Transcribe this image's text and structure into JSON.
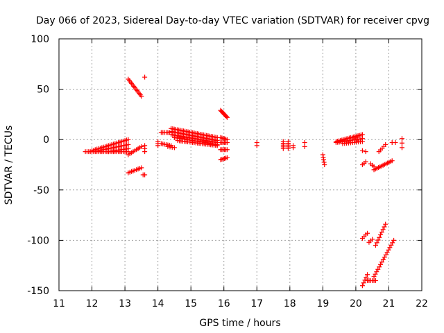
{
  "chart_data": {
    "type": "scatter",
    "title": "Day 066 of 2023, Sidereal Day-to-day VTEC variation (SDTVAR) for receiver cpvg",
    "xlabel": "GPS time / hours",
    "ylabel": "SDTVAR / TECUs",
    "xlim": [
      11,
      22
    ],
    "ylim": [
      -150,
      100
    ],
    "xticks": [
      11,
      12,
      13,
      14,
      15,
      16,
      17,
      18,
      19,
      20,
      21,
      22
    ],
    "yticks": [
      -150,
      -100,
      -50,
      0,
      50,
      100
    ],
    "grid": true,
    "marker": "+",
    "color": "#ff0000",
    "segments": [
      {
        "x0": 11.8,
        "y0": -12,
        "x1": 13.1,
        "y1": -12,
        "n": 27
      },
      {
        "x0": 12.0,
        "y0": -11,
        "x1": 13.1,
        "y1": 0,
        "n": 23
      },
      {
        "x0": 12.2,
        "y0": -11,
        "x1": 13.1,
        "y1": -5,
        "n": 19
      },
      {
        "x0": 12.5,
        "y0": -12,
        "x1": 13.1,
        "y1": -9,
        "n": 13
      },
      {
        "x0": 13.1,
        "y0": 60,
        "x1": 13.5,
        "y1": 43,
        "n": 13
      },
      {
        "x0": 13.6,
        "y0": 62,
        "x1": 13.6,
        "y1": 62,
        "n": 1
      },
      {
        "x0": 13.1,
        "y0": -15,
        "x1": 13.5,
        "y1": -7,
        "n": 9
      },
      {
        "x0": 13.1,
        "y0": -33,
        "x1": 13.5,
        "y1": -28,
        "n": 9
      },
      {
        "x0": 13.6,
        "y0": -6,
        "x1": 13.6,
        "y1": -12,
        "n": 3
      },
      {
        "x0": 13.55,
        "y0": -35,
        "x1": 13.6,
        "y1": -35,
        "n": 2
      },
      {
        "x0": 14.0,
        "y0": -2,
        "x1": 14.0,
        "y1": -6,
        "n": 3
      },
      {
        "x0": 14.1,
        "y0": 7,
        "x1": 14.4,
        "y1": 7,
        "n": 7
      },
      {
        "x0": 14.1,
        "y0": -4,
        "x1": 14.4,
        "y1": -6,
        "n": 7
      },
      {
        "x0": 14.3,
        "y0": -7,
        "x1": 14.5,
        "y1": -8,
        "n": 4
      },
      {
        "x0": 14.4,
        "y0": 11,
        "x1": 15.8,
        "y1": 2,
        "n": 31
      },
      {
        "x0": 14.4,
        "y0": 8,
        "x1": 15.8,
        "y1": -1,
        "n": 31
      },
      {
        "x0": 14.4,
        "y0": 5,
        "x1": 15.8,
        "y1": -3,
        "n": 31
      },
      {
        "x0": 14.5,
        "y0": 2,
        "x1": 15.8,
        "y1": -5,
        "n": 27
      },
      {
        "x0": 14.6,
        "y0": -1,
        "x1": 15.8,
        "y1": -6,
        "n": 25
      },
      {
        "x0": 15.9,
        "y0": 29,
        "x1": 16.1,
        "y1": 22,
        "n": 9
      },
      {
        "x0": 15.9,
        "y0": 2,
        "x1": 16.1,
        "y1": 0,
        "n": 6
      },
      {
        "x0": 15.9,
        "y0": -3,
        "x1": 16.1,
        "y1": -3,
        "n": 6
      },
      {
        "x0": 15.9,
        "y0": -10,
        "x1": 16.1,
        "y1": -10,
        "n": 6
      },
      {
        "x0": 15.9,
        "y0": -20,
        "x1": 16.1,
        "y1": -18,
        "n": 6
      },
      {
        "x0": 17.0,
        "y0": -3,
        "x1": 17.0,
        "y1": -6,
        "n": 2
      },
      {
        "x0": 17.8,
        "y0": -2,
        "x1": 17.8,
        "y1": -9,
        "n": 5
      },
      {
        "x0": 17.95,
        "y0": -2,
        "x1": 17.95,
        "y1": -9,
        "n": 5
      },
      {
        "x0": 18.1,
        "y0": -6,
        "x1": 18.1,
        "y1": -8,
        "n": 2
      },
      {
        "x0": 18.45,
        "y0": -3,
        "x1": 18.45,
        "y1": -7,
        "n": 2
      },
      {
        "x0": 19.0,
        "y0": -15,
        "x1": 19.05,
        "y1": -25,
        "n": 5
      },
      {
        "x0": 19.4,
        "y0": -2,
        "x1": 20.2,
        "y1": 5,
        "n": 19
      },
      {
        "x0": 19.4,
        "y0": -3,
        "x1": 20.2,
        "y1": 1,
        "n": 17
      },
      {
        "x0": 19.6,
        "y0": -4,
        "x1": 20.2,
        "y1": -2,
        "n": 11
      },
      {
        "x0": 20.2,
        "y0": -11,
        "x1": 20.3,
        "y1": -12,
        "n": 2
      },
      {
        "x0": 20.2,
        "y0": -25,
        "x1": 20.3,
        "y1": -22,
        "n": 3
      },
      {
        "x0": 20.45,
        "y0": -24,
        "x1": 20.55,
        "y1": -27,
        "n": 3
      },
      {
        "x0": 20.55,
        "y0": -30,
        "x1": 21.1,
        "y1": -21,
        "n": 13
      },
      {
        "x0": 20.7,
        "y0": -12,
        "x1": 20.9,
        "y1": -5,
        "n": 5
      },
      {
        "x0": 21.1,
        "y0": -3,
        "x1": 21.2,
        "y1": -3,
        "n": 2
      },
      {
        "x0": 21.4,
        "y0": 1,
        "x1": 21.4,
        "y1": -8,
        "n": 3
      },
      {
        "x0": 20.2,
        "y0": -98,
        "x1": 20.35,
        "y1": -93,
        "n": 4
      },
      {
        "x0": 20.4,
        "y0": -102,
        "x1": 20.5,
        "y1": -99,
        "n": 3
      },
      {
        "x0": 20.6,
        "y0": -105,
        "x1": 20.9,
        "y1": -84,
        "n": 9
      },
      {
        "x0": 20.2,
        "y0": -145,
        "x1": 20.35,
        "y1": -134,
        "n": 5
      },
      {
        "x0": 20.35,
        "y0": -140,
        "x1": 20.6,
        "y1": -140,
        "n": 6
      },
      {
        "x0": 20.55,
        "y0": -136,
        "x1": 21.15,
        "y1": -100,
        "n": 16
      }
    ]
  }
}
